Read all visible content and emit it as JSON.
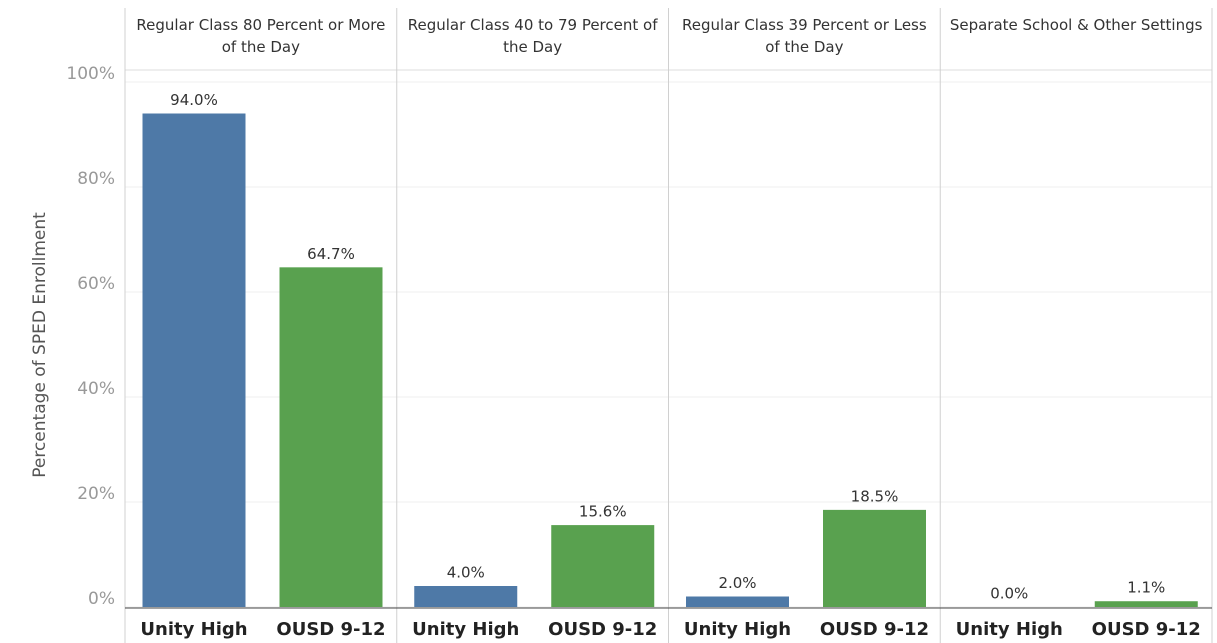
{
  "chart_data": {
    "type": "bar",
    "y_label": "Percentage of SPED Enrollment",
    "categories": [
      "Regular Class 80 Percent or More of the Day",
      "Regular Class 40 to 79 Percent of the Day",
      "Regular Class 39 Percent or Less of the Day",
      "Separate School & Other Settings"
    ],
    "series": [
      {
        "name": "Unity High",
        "color": "#4e79a7",
        "values": [
          94.0,
          4.0,
          2.0,
          0.0
        ],
        "value_labels": [
          "94.0%",
          "4.0%",
          "2.0%",
          "0.0%"
        ]
      },
      {
        "name": "OUSD 9-12",
        "color": "#59a14f",
        "values": [
          64.7,
          15.6,
          18.5,
          1.1
        ],
        "value_labels": [
          "64.7%",
          "15.6%",
          "18.5%",
          "1.1%"
        ]
      }
    ],
    "ylim": [
      0,
      100
    ],
    "yticks": [
      {
        "value": 0,
        "label": "0%"
      },
      {
        "value": 20,
        "label": "20%"
      },
      {
        "value": 40,
        "label": "40%"
      },
      {
        "value": 60,
        "label": "60%"
      },
      {
        "value": 80,
        "label": "80%"
      },
      {
        "value": 100,
        "label": "100%"
      }
    ],
    "grid": true
  }
}
